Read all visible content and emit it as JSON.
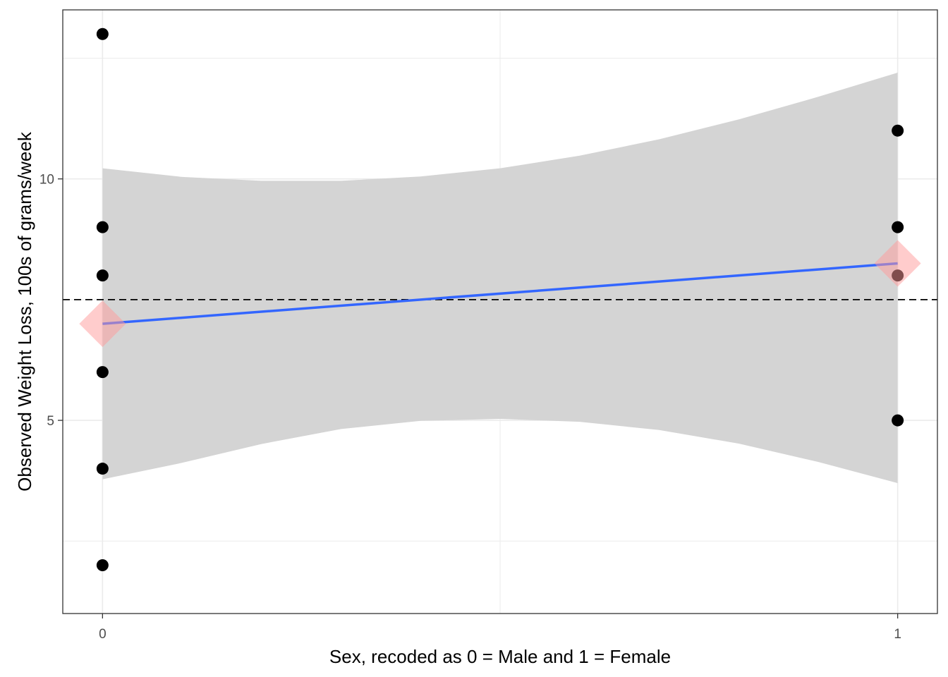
{
  "chart_data": {
    "type": "scatter",
    "title": "",
    "xlabel": "Sex, recoded as 0 = Male and 1 = Female",
    "ylabel": "Observed Weight Loss, 100s of grams/week",
    "xlim": [
      -0.05,
      1.05
    ],
    "ylim": [
      1.0,
      13.5
    ],
    "x_ticks": [
      {
        "value": 0,
        "label": "0"
      },
      {
        "value": 1,
        "label": "1"
      }
    ],
    "y_ticks": [
      {
        "value": 5,
        "label": "5"
      },
      {
        "value": 10,
        "label": "10"
      }
    ],
    "minor_y_gridlines": [
      2.5,
      7.5,
      12.5
    ],
    "minor_x_gridlines": [
      0.5
    ],
    "grid": true,
    "points": [
      {
        "x": 0,
        "y": 13
      },
      {
        "x": 0,
        "y": 9
      },
      {
        "x": 0,
        "y": 8
      },
      {
        "x": 0,
        "y": 6
      },
      {
        "x": 0,
        "y": 4
      },
      {
        "x": 0,
        "y": 2
      },
      {
        "x": 1,
        "y": 11
      },
      {
        "x": 1,
        "y": 9
      },
      {
        "x": 1,
        "y": 8
      },
      {
        "x": 1,
        "y": 5
      }
    ],
    "group_means": [
      {
        "x": 0,
        "y": 7.0
      },
      {
        "x": 1,
        "y": 8.25
      }
    ],
    "regression_line": {
      "x": [
        0,
        1
      ],
      "y": [
        7.0,
        8.25
      ]
    },
    "confidence_band": {
      "x": [
        0,
        0.1,
        0.2,
        0.3,
        0.4,
        0.5,
        0.6,
        0.7,
        0.8,
        0.9,
        1.0
      ],
      "upper": [
        10.22,
        10.04,
        9.96,
        9.96,
        10.05,
        10.22,
        10.48,
        10.82,
        11.23,
        11.7,
        12.2
      ],
      "lower": [
        3.78,
        4.12,
        4.51,
        4.82,
        4.99,
        5.03,
        4.97,
        4.8,
        4.52,
        4.14,
        3.7
      ]
    },
    "reference_line": {
      "y": 7.5,
      "style": "dashed"
    },
    "colors": {
      "points": "#000000",
      "regression_line": "#3366ff",
      "confidence_band": "#d4d4d4",
      "group_means": "#ff9999",
      "reference_line": "#000000",
      "grid": "#ebebeb",
      "panel_border": "#333333"
    }
  }
}
